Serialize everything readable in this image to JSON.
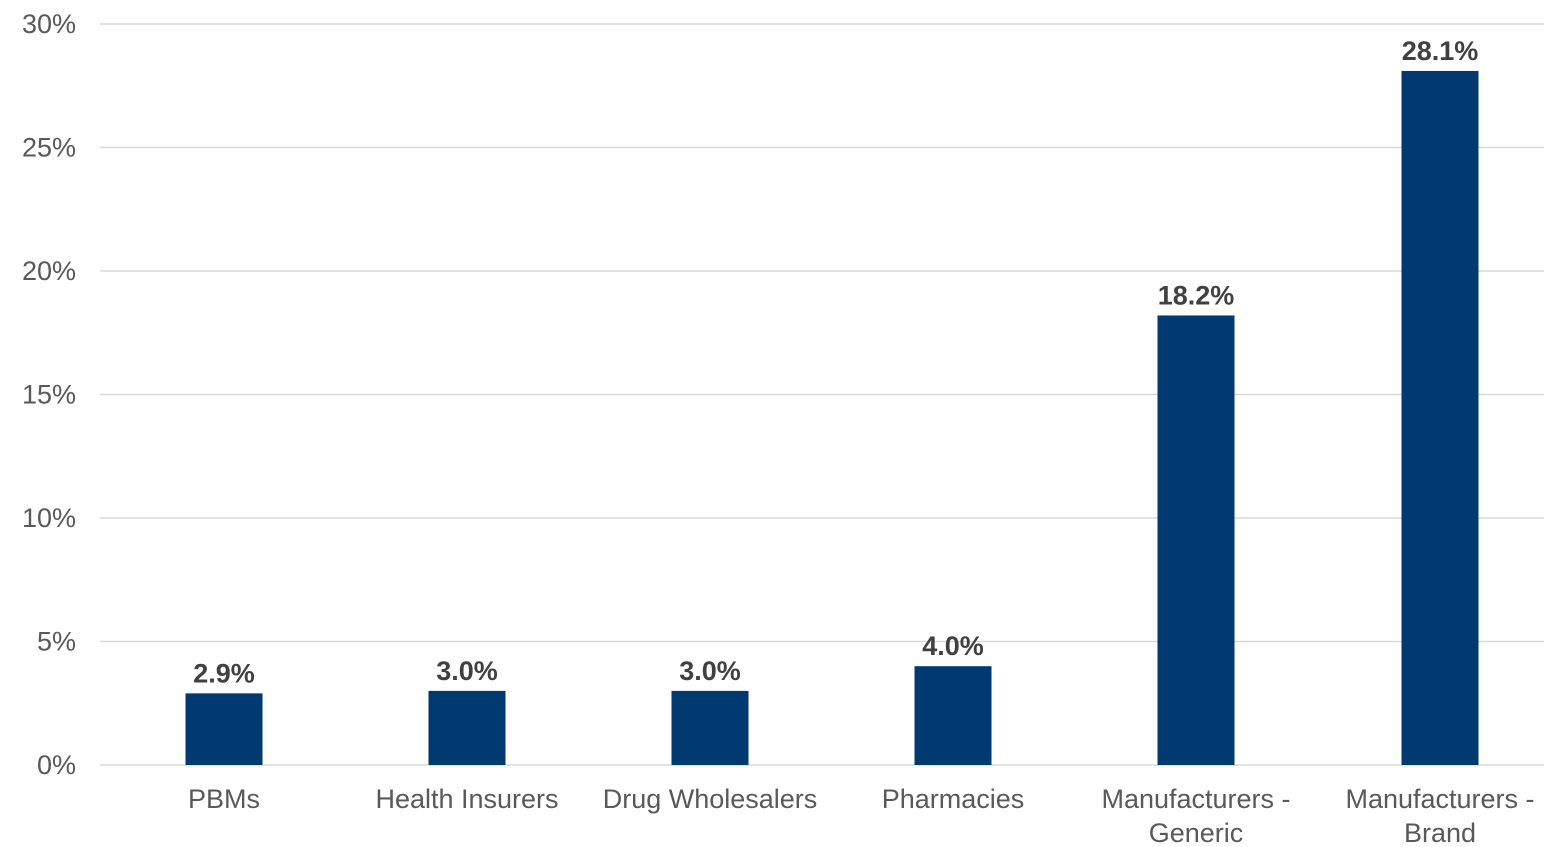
{
  "chart_data": {
    "type": "bar",
    "title": "",
    "xlabel": "",
    "ylabel": "",
    "categories": [
      [
        "PBMs"
      ],
      [
        "Health Insurers"
      ],
      [
        "Drug Wholesalers"
      ],
      [
        "Pharmacies"
      ],
      [
        "Manufacturers -",
        "Generic"
      ],
      [
        "Manufacturers -",
        "Brand"
      ]
    ],
    "values": [
      2.9,
      3.0,
      3.0,
      4.0,
      18.2,
      28.1
    ],
    "data_labels": [
      "2.9%",
      "3.0%",
      "3.0%",
      "4.0%",
      "18.2%",
      "28.1%"
    ],
    "ylim": [
      0,
      30
    ],
    "yticks": [
      0,
      5,
      10,
      15,
      20,
      25,
      30
    ],
    "ytick_labels": [
      "0%",
      "5%",
      "10%",
      "15%",
      "20%",
      "25%",
      "30%"
    ],
    "grid": true,
    "legend": "none",
    "bar_color": "#003A70",
    "grid_color": "#D9D9D9"
  }
}
